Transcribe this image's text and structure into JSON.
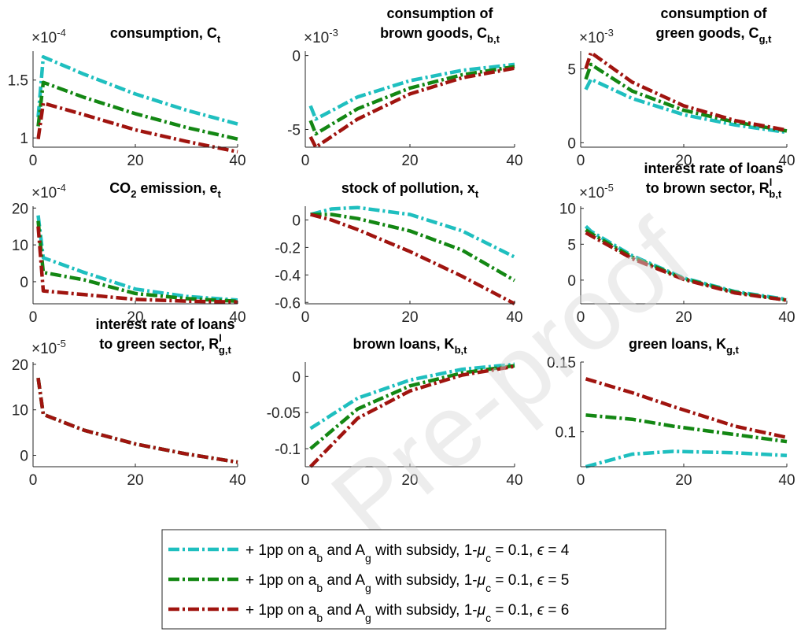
{
  "watermark": "Pre-proof",
  "series_colors": [
    "#1fbfbf",
    "#138713",
    "#a0140f"
  ],
  "legend": [
    {
      "pre": "+ 1pp on a",
      "s1": "b",
      "mid": " and A",
      "s2": "g",
      "post1": " with subsidy, 1-",
      "mu": "μ",
      "s3": "c",
      "post2": " = 0.1, ",
      "eps": "ϵ",
      "post3": " = 4"
    },
    {
      "pre": "+ 1pp on a",
      "s1": "b",
      "mid": " and A",
      "s2": "g",
      "post1": " with subsidy, 1-",
      "mu": "μ",
      "s3": "c",
      "post2": " = 0.1, ",
      "eps": "ϵ",
      "post3": " = 5"
    },
    {
      "pre": "+ 1pp on a",
      "s1": "b",
      "mid": " and A",
      "s2": "g",
      "post1": " with subsidy, 1-",
      "mu": "μ",
      "s3": "c",
      "post2": " = 0.1, ",
      "eps": "ϵ",
      "post3": " = 6"
    }
  ],
  "chart_data": [
    {
      "type": "line",
      "title_line1": "",
      "title_main": "consumption, C",
      "title_sub": "t",
      "exponent": "×10",
      "exponent_power": "-4",
      "x": [
        1,
        2,
        10,
        20,
        30,
        40
      ],
      "xlim": [
        0,
        40
      ],
      "ylim": [
        0.92,
        1.75
      ],
      "xticks": [
        0,
        20,
        40
      ],
      "yticks": [
        1,
        1.5
      ],
      "ytick_labels": [
        "1",
        "1.5"
      ],
      "series": [
        {
          "values": [
            1.18,
            1.7,
            1.55,
            1.38,
            1.24,
            1.12
          ]
        },
        {
          "values": [
            1.1,
            1.48,
            1.35,
            1.21,
            1.09,
            0.99
          ]
        },
        {
          "values": [
            0.99,
            1.3,
            1.2,
            1.07,
            0.97,
            0.88
          ]
        }
      ]
    },
    {
      "type": "line",
      "title_line1": "consumption of",
      "title_main": "brown goods, C",
      "title_sub": "b,t",
      "exponent": "×10",
      "exponent_power": "-3",
      "x": [
        1,
        2,
        10,
        20,
        30,
        40
      ],
      "xlim": [
        0,
        40
      ],
      "ylim": [
        -6.2,
        0.3
      ],
      "xticks": [
        0,
        20,
        40
      ],
      "yticks": [
        -5,
        0
      ],
      "ytick_labels": [
        "-5",
        "0"
      ],
      "series": [
        {
          "values": [
            -3.4,
            -4.3,
            -2.8,
            -1.7,
            -1.0,
            -0.6
          ]
        },
        {
          "values": [
            -4.4,
            -5.3,
            -3.6,
            -2.2,
            -1.3,
            -0.75
          ]
        },
        {
          "values": [
            -5.5,
            -6.2,
            -4.3,
            -2.6,
            -1.5,
            -0.85
          ]
        }
      ]
    },
    {
      "type": "line",
      "title_line1": "consumption of",
      "title_main": "green goods, C",
      "title_sub": "g,t",
      "exponent": "×10",
      "exponent_power": "-3",
      "x": [
        1,
        2,
        10,
        20,
        30,
        40
      ],
      "xlim": [
        0,
        40
      ],
      "ylim": [
        -0.3,
        6.2
      ],
      "xticks": [
        0,
        20,
        40
      ],
      "yticks": [
        0,
        5
      ],
      "ytick_labels": [
        "0",
        "5"
      ],
      "series": [
        {
          "values": [
            3.6,
            4.3,
            3.0,
            1.9,
            1.2,
            0.7
          ]
        },
        {
          "values": [
            4.3,
            5.3,
            3.5,
            2.2,
            1.4,
            0.8
          ]
        },
        {
          "values": [
            5.0,
            6.1,
            4.1,
            2.5,
            1.5,
            0.85
          ]
        }
      ]
    },
    {
      "type": "line",
      "title_line1": "",
      "title_main": "CO",
      "title_sub": "2",
      "title_tail": " emission, e",
      "title_sub2": "t",
      "exponent": "×10",
      "exponent_power": "-4",
      "x": [
        1,
        2,
        10,
        20,
        30,
        40
      ],
      "xlim": [
        0,
        40
      ],
      "ylim": [
        -6.0,
        20.5
      ],
      "xticks": [
        0,
        20,
        40
      ],
      "yticks": [
        0,
        10,
        20
      ],
      "ytick_labels": [
        "0",
        "10",
        "20"
      ],
      "series": [
        {
          "values": [
            18,
            6.5,
            2.5,
            -2.0,
            -4.0,
            -5.0
          ]
        },
        {
          "values": [
            16.5,
            2.5,
            0.5,
            -3.2,
            -4.6,
            -5.3
          ]
        },
        {
          "values": [
            15,
            -2.5,
            -3.5,
            -4.8,
            -5.3,
            -5.5
          ]
        }
      ]
    },
    {
      "type": "line",
      "title_line1": "",
      "title_main": "stock of pollution, x",
      "title_sub": "t",
      "exponent": "",
      "exponent_power": "",
      "x": [
        1,
        5,
        10,
        20,
        30,
        40
      ],
      "xlim": [
        0,
        40
      ],
      "ylim": [
        -0.61,
        0.1
      ],
      "xticks": [
        0,
        20,
        40
      ],
      "yticks": [
        -0.6,
        -0.4,
        -0.2,
        0
      ],
      "ytick_labels": [
        "-0.6",
        "-0.4",
        "-0.2",
        "0"
      ],
      "series": [
        {
          "values": [
            0.04,
            0.08,
            0.09,
            0.04,
            -0.08,
            -0.27
          ]
        },
        {
          "values": [
            0.04,
            0.04,
            0.01,
            -0.08,
            -0.22,
            -0.44
          ]
        },
        {
          "values": [
            0.04,
            0.0,
            -0.07,
            -0.23,
            -0.41,
            -0.61
          ]
        }
      ]
    },
    {
      "type": "line",
      "title_line1": "interest rate of loans",
      "title_main": "to brown sector, R",
      "title_sup": "l",
      "title_sub": "b,t",
      "exponent": "×10",
      "exponent_power": "-5",
      "x": [
        1,
        2,
        10,
        20,
        30,
        40
      ],
      "xlim": [
        0,
        40
      ],
      "ylim": [
        -3.3,
        10.3
      ],
      "xticks": [
        0,
        20,
        40
      ],
      "yticks": [
        0,
        5,
        10
      ],
      "ytick_labels": [
        "0",
        "5",
        "10"
      ],
      "series": [
        {
          "values": [
            7.5,
            6.8,
            3.4,
            0.3,
            -1.6,
            -2.7
          ]
        },
        {
          "values": [
            7.0,
            6.5,
            3.2,
            0.2,
            -1.7,
            -2.8
          ]
        },
        {
          "values": [
            6.6,
            6.2,
            3.0,
            0.1,
            -1.8,
            -2.8
          ]
        }
      ]
    },
    {
      "type": "line",
      "title_line1": "interest rate of loans",
      "title_main": "to green sector, R",
      "title_sup": "l",
      "title_sub": "g,t",
      "exponent": "×10",
      "exponent_power": "-5",
      "x": [
        1,
        2,
        10,
        20,
        30,
        40
      ],
      "xlim": [
        0,
        40
      ],
      "ylim": [
        -2.5,
        20.5
      ],
      "xticks": [
        0,
        20,
        40
      ],
      "yticks": [
        0,
        10,
        20
      ],
      "ytick_labels": [
        "0",
        "10",
        "20"
      ],
      "series": [
        {
          "values": [
            17,
            9,
            5.5,
            2.5,
            0.3,
            -1.5
          ]
        },
        {
          "values": [
            17,
            9,
            5.5,
            2.5,
            0.3,
            -1.5
          ]
        },
        {
          "values": [
            17,
            9,
            5.5,
            2.5,
            0.3,
            -1.5
          ]
        }
      ]
    },
    {
      "type": "line",
      "title_line1": "",
      "title_main": "brown loans, K",
      "title_sub": "b,t",
      "exponent": "",
      "exponent_power": "",
      "x": [
        1,
        10,
        20,
        30,
        40
      ],
      "xlim": [
        0,
        40
      ],
      "ylim": [
        -0.125,
        0.02
      ],
      "xticks": [
        0,
        20,
        40
      ],
      "yticks": [
        -0.1,
        -0.05,
        0
      ],
      "ytick_labels": [
        "-0.1",
        "-0.05",
        "0"
      ],
      "series": [
        {
          "values": [
            -0.072,
            -0.03,
            -0.005,
            0.01,
            0.017
          ]
        },
        {
          "values": [
            -0.1,
            -0.045,
            -0.013,
            0.005,
            0.015
          ]
        },
        {
          "values": [
            -0.125,
            -0.058,
            -0.02,
            0.002,
            0.014
          ]
        }
      ]
    },
    {
      "type": "line",
      "title_line1": "",
      "title_main": "green loans, K",
      "title_sub": "g,t",
      "exponent": "",
      "exponent_power": "",
      "x": [
        1,
        10,
        18,
        30,
        40
      ],
      "xlim": [
        0,
        40
      ],
      "ylim": [
        0.075,
        0.15
      ],
      "xticks": [
        0,
        20,
        40
      ],
      "yticks": [
        0.1,
        0.15
      ],
      "ytick_labels": [
        "0.1",
        "0.15"
      ],
      "series": [
        {
          "values": [
            0.075,
            0.084,
            0.086,
            0.085,
            0.083
          ]
        },
        {
          "values": [
            0.112,
            0.109,
            0.104,
            0.098,
            0.093
          ]
        },
        {
          "values": [
            0.138,
            0.128,
            0.118,
            0.104,
            0.096
          ]
        }
      ]
    }
  ]
}
